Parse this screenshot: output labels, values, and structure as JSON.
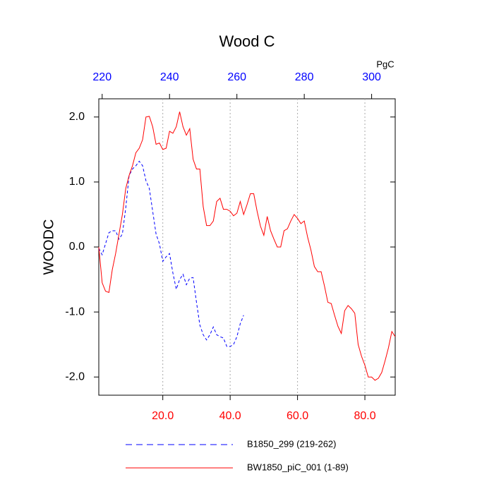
{
  "chart_data": {
    "type": "line",
    "title": "Wood C",
    "ylabel": "WOODC",
    "x2label": "PgC",
    "xlim": [
      1,
      89
    ],
    "ylim": [
      -2.28,
      2.28
    ],
    "x2lim": [
      219,
      307
    ],
    "xticks": [
      {
        "value": 20,
        "label": "20.0"
      },
      {
        "value": 40,
        "label": "40.0"
      },
      {
        "value": 60,
        "label": "60.0"
      },
      {
        "value": 80,
        "label": "80.0"
      }
    ],
    "x2ticks": [
      220,
      240,
      260,
      280,
      300
    ],
    "yticks": [
      {
        "value": 2,
        "label": "2.0"
      },
      {
        "value": 1,
        "label": "1.0"
      },
      {
        "value": 0,
        "label": "0.0"
      },
      {
        "value": -1,
        "label": "-1.0"
      },
      {
        "value": -2,
        "label": "-2.0"
      }
    ],
    "xtick_color": "#ff0000",
    "x2tick_color": "#0000ff",
    "grid": "x",
    "series": [
      {
        "name": "B1850_299 (219-262)",
        "color": "#0000ff",
        "dash": true,
        "x": [
          1,
          2,
          3,
          4,
          5,
          6,
          7,
          8,
          9,
          10,
          11,
          12,
          13,
          14,
          15,
          16,
          17,
          18,
          19,
          20,
          21,
          22,
          23,
          24,
          25,
          26,
          27,
          28,
          29,
          30,
          31,
          32,
          33,
          34,
          35,
          36,
          37,
          38,
          39,
          40,
          41,
          42,
          43,
          44
        ],
        "values": [
          -0.02,
          -0.12,
          0.05,
          0.22,
          0.25,
          0.25,
          0.12,
          0.2,
          0.6,
          1.1,
          1.2,
          1.25,
          1.32,
          1.25,
          1.02,
          0.9,
          0.55,
          0.2,
          0.05,
          -0.22,
          -0.15,
          -0.1,
          -0.4,
          -0.65,
          -0.5,
          -0.42,
          -0.58,
          -0.48,
          -0.47,
          -0.85,
          -1.2,
          -1.35,
          -1.43,
          -1.35,
          -1.23,
          -1.35,
          -1.38,
          -1.4,
          -1.53,
          -1.53,
          -1.5,
          -1.38,
          -1.18,
          -1.05
        ]
      },
      {
        "name": "BW1850_piC_001 (1-89)",
        "color": "#ff0000",
        "dash": false,
        "x": [
          1,
          2,
          3,
          4,
          5,
          6,
          7,
          8,
          9,
          10,
          11,
          12,
          13,
          14,
          15,
          16,
          17,
          18,
          19,
          20,
          21,
          22,
          23,
          24,
          25,
          26,
          27,
          28,
          29,
          30,
          31,
          32,
          33,
          34,
          35,
          36,
          37,
          38,
          39,
          40,
          41,
          42,
          43,
          44,
          45,
          46,
          47,
          48,
          49,
          50,
          51,
          52,
          53,
          54,
          55,
          56,
          57,
          58,
          59,
          60,
          61,
          62,
          63,
          64,
          65,
          66,
          67,
          68,
          69,
          70,
          71,
          72,
          73,
          74,
          75,
          76,
          77,
          78,
          79,
          80,
          81,
          82,
          83,
          84,
          85,
          86,
          87,
          88,
          89
        ],
        "values": [
          0.0,
          -0.55,
          -0.68,
          -0.7,
          -0.35,
          -0.1,
          0.2,
          0.5,
          0.9,
          1.1,
          1.25,
          1.45,
          1.52,
          1.65,
          2.0,
          2.01,
          1.85,
          1.58,
          1.6,
          1.5,
          1.52,
          1.78,
          1.75,
          1.85,
          2.08,
          1.85,
          1.72,
          1.82,
          1.35,
          1.2,
          1.2,
          0.62,
          0.33,
          0.33,
          0.4,
          0.7,
          0.75,
          0.58,
          0.58,
          0.55,
          0.48,
          0.52,
          0.7,
          0.5,
          0.65,
          0.82,
          0.82,
          0.55,
          0.32,
          0.18,
          0.47,
          0.25,
          0.12,
          0.0,
          0.0,
          0.25,
          0.28,
          0.4,
          0.5,
          0.44,
          0.36,
          0.4,
          0.15,
          -0.05,
          -0.3,
          -0.38,
          -0.38,
          -0.6,
          -0.85,
          -0.87,
          -1.05,
          -1.22,
          -1.33,
          -0.98,
          -0.9,
          -0.95,
          -1.02,
          -1.5,
          -1.68,
          -1.82,
          -2.0,
          -2.0,
          -2.05,
          -2.02,
          -1.93,
          -1.75,
          -1.55,
          -1.3,
          -1.38
        ]
      }
    ]
  }
}
